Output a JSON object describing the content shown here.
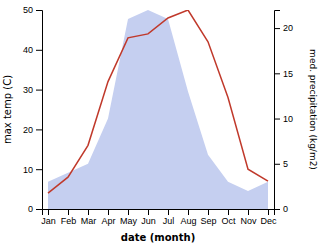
{
  "chart_data": {
    "type": "line",
    "categories": [
      "Jan",
      "Feb",
      "Mar",
      "Apr",
      "May",
      "Jun",
      "Jul",
      "Aug",
      "Sep",
      "Oct",
      "Nov",
      "Dec"
    ],
    "series": [
      {
        "type": "area",
        "axis": "y2",
        "color": "#c5cff0",
        "values": [
          3,
          4,
          5,
          10,
          21,
          22,
          21,
          13,
          6,
          3,
          2,
          3
        ]
      },
      {
        "type": "line",
        "color": "#c0392b",
        "values": [
          4,
          8,
          16,
          32,
          43,
          44,
          48,
          50,
          42,
          28,
          10,
          7
        ]
      }
    ],
    "xlabel": "date (month)",
    "ylabel": "max temp (C)",
    "y2label": "med. precipitation (kg/m2)",
    "ylim": [
      0,
      50
    ],
    "yticks": [
      0,
      10,
      20,
      30,
      40,
      50
    ],
    "y2lim": [
      0,
      22
    ],
    "y2ticks": [
      0,
      5,
      10,
      15,
      20
    ]
  }
}
